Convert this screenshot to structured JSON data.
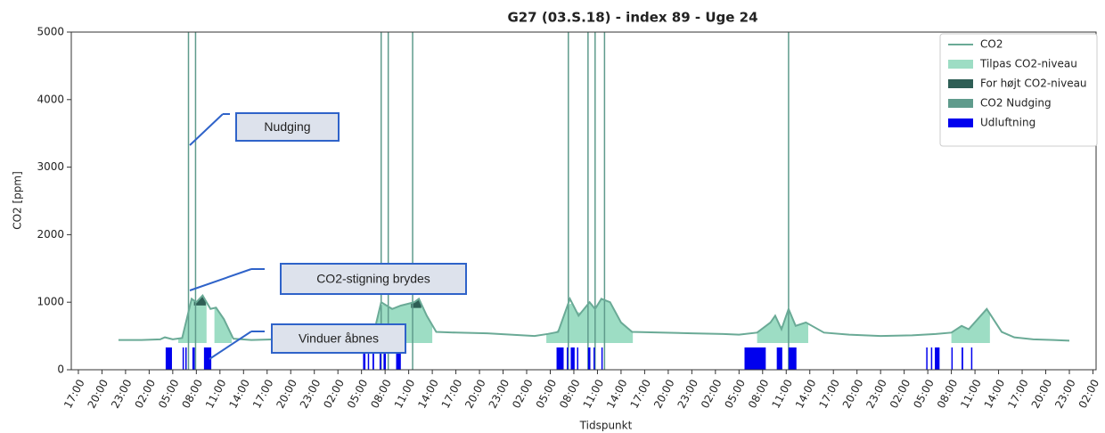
{
  "chart_data": {
    "type": "line",
    "title": "G27 (03.S.18) - index 89 - Uge 24",
    "ylabel": "CO2 [ppm]",
    "xlabel": "Tidspunkt",
    "ylim": [
      0,
      5000
    ],
    "yticks": [
      0,
      1000,
      2000,
      3000,
      4000,
      5000
    ],
    "xlim": [
      -0.9,
      129.4
    ],
    "xticks": [
      {
        "value": 0,
        "label": "17:00"
      },
      {
        "value": 3,
        "label": "20:00"
      },
      {
        "value": 6,
        "label": "23:00"
      },
      {
        "value": 9,
        "label": "02:00"
      },
      {
        "value": 12,
        "label": "05:00"
      },
      {
        "value": 15,
        "label": "08:00"
      },
      {
        "value": 18,
        "label": "11:00"
      },
      {
        "value": 21,
        "label": "14:00"
      },
      {
        "value": 24,
        "label": "17:00"
      },
      {
        "value": 27,
        "label": "20:00"
      },
      {
        "value": 30,
        "label": "23:00"
      },
      {
        "value": 33,
        "label": "02:00"
      },
      {
        "value": 36,
        "label": "05:00"
      },
      {
        "value": 39,
        "label": "08:00"
      },
      {
        "value": 42,
        "label": "11:00"
      },
      {
        "value": 45,
        "label": "14:00"
      },
      {
        "value": 48,
        "label": "17:00"
      },
      {
        "value": 51,
        "label": "20:00"
      },
      {
        "value": 54,
        "label": "23:00"
      },
      {
        "value": 57,
        "label": "02:00"
      },
      {
        "value": 60,
        "label": "05:00"
      },
      {
        "value": 63,
        "label": "08:00"
      },
      {
        "value": 66,
        "label": "11:00"
      },
      {
        "value": 69,
        "label": "14:00"
      },
      {
        "value": 72,
        "label": "17:00"
      },
      {
        "value": 75,
        "label": "20:00"
      },
      {
        "value": 78,
        "label": "23:00"
      },
      {
        "value": 81,
        "label": "02:00"
      },
      {
        "value": 84,
        "label": "05:00"
      },
      {
        "value": 87,
        "label": "08:00"
      },
      {
        "value": 90,
        "label": "11:00"
      },
      {
        "value": 93,
        "label": "14:00"
      },
      {
        "value": 96,
        "label": "17:00"
      },
      {
        "value": 99,
        "label": "20:00"
      },
      {
        "value": 102,
        "label": "23:00"
      },
      {
        "value": 105,
        "label": "02:00"
      },
      {
        "value": 108,
        "label": "05:00"
      },
      {
        "value": 111,
        "label": "08:00"
      },
      {
        "value": 114,
        "label": "11:00"
      },
      {
        "value": 117,
        "label": "14:00"
      },
      {
        "value": 120,
        "label": "17:00"
      },
      {
        "value": 123,
        "label": "20:00"
      },
      {
        "value": 126,
        "label": "23:00"
      },
      {
        "value": 129,
        "label": "02:00"
      }
    ],
    "series": [
      {
        "name": "CO2",
        "color": "#6aaa96",
        "x": [
          5.1,
          8,
          10.4,
          11,
          12,
          13.2,
          14.4,
          15,
          15.8,
          16.3,
          16.8,
          17.5,
          18.5,
          19.7,
          22,
          25,
          28,
          31,
          34,
          35.3,
          36.5,
          37.6,
          38.5,
          39.2,
          39.9,
          41,
          42.7,
          43.3,
          44.3,
          45.5,
          48,
          52,
          55,
          58,
          59.7,
          61,
          62.5,
          63.6,
          65,
          65.7,
          66.5,
          67.6,
          69,
          70.4,
          74,
          78,
          82,
          84,
          86.3,
          88,
          88.6,
          89.4,
          90.3,
          91.2,
          92.5,
          94.8,
          98,
          102,
          106,
          109,
          111,
          112.3,
          113.2,
          115.5,
          117.4,
          119,
          121.4,
          124,
          126
        ],
        "values": [
          440,
          440,
          450,
          480,
          450,
          470,
          1050,
          1000,
          1100,
          1000,
          900,
          920,
          750,
          460,
          440,
          450,
          470,
          490,
          490,
          490,
          500,
          560,
          1000,
          950,
          900,
          950,
          1000,
          1050,
          800,
          560,
          550,
          540,
          520,
          500,
          530,
          560,
          1050,
          800,
          1000,
          900,
          1050,
          1000,
          700,
          560,
          550,
          540,
          530,
          520,
          550,
          700,
          800,
          600,
          900,
          650,
          700,
          550,
          520,
          500,
          510,
          530,
          550,
          650,
          600,
          900,
          560,
          480,
          450,
          440,
          430
        ]
      },
      {
        "name": "Tilpas CO2-niveau",
        "color": "#9dddc4",
        "spans": [
          [
            12.7,
            16.3
          ],
          [
            17.3,
            19.5
          ],
          [
            36.7,
            45.0
          ],
          [
            59.5,
            70.5
          ],
          [
            86.3,
            92.8
          ],
          [
            111,
            115.9
          ]
        ]
      },
      {
        "name": "For højt CO2-niveau",
        "color": "#2e5e55",
        "spans": [
          [
            14.7,
            16.2
          ],
          [
            42.3,
            43.6
          ]
        ]
      },
      {
        "name": "CO2 Nudging",
        "color": "#5f9b8c",
        "x": [
          14.0,
          14.9,
          38.5,
          39.4,
          42.5,
          62.3,
          64.8,
          65.7,
          66.9,
          90.3
        ]
      },
      {
        "name": "Udluftning",
        "color": "#0000ee",
        "spans": [
          [
            11.1,
            11.9
          ],
          [
            13.25,
            13.4
          ],
          [
            13.6,
            13.7
          ],
          [
            14.5,
            14.8
          ],
          [
            15.97,
            16.9
          ],
          [
            36.2,
            36.5
          ],
          [
            36.8,
            36.9
          ],
          [
            37.4,
            37.6
          ],
          [
            38.3,
            38.5
          ],
          [
            38.8,
            39.1
          ],
          [
            40.4,
            41.0
          ],
          [
            60.8,
            61.7
          ],
          [
            62.1,
            62.2
          ],
          [
            62.6,
            63.1
          ],
          [
            63.4,
            63.5
          ],
          [
            64.8,
            65.1
          ],
          [
            65.5,
            65.6
          ],
          [
            66.5,
            66.6
          ],
          [
            84.7,
            87.4
          ],
          [
            88.8,
            89.5
          ],
          [
            90.3,
            91.3
          ],
          [
            107.8,
            107.9
          ],
          [
            108.4,
            108.5
          ],
          [
            108.9,
            109.5
          ],
          [
            111.0,
            111.1
          ],
          [
            112.3,
            112.5
          ],
          [
            113.5,
            113.6
          ]
        ]
      }
    ],
    "annotations": [
      "Nudging",
      "CO2-stigning brydes",
      "Vinduer åbnes"
    ]
  }
}
